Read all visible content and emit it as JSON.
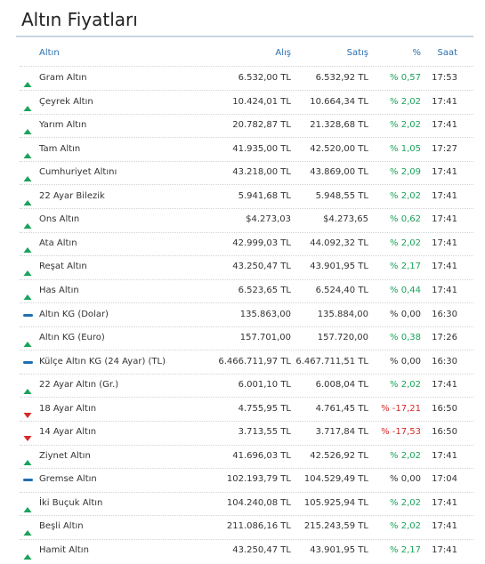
{
  "header": {
    "title": "Altın Fiyatları"
  },
  "table": {
    "columns": [
      "Altın",
      "Alış",
      "Satış",
      "%",
      "Saat"
    ],
    "rows": [
      [
        "Gram Altın",
        "6.532,00 TL",
        "6.532,92 TL",
        "% 0,57",
        "17:53"
      ],
      [
        "Çeyrek Altın",
        "10.424,01 TL",
        "10.664,34 TL",
        "% 2,02",
        "17:41"
      ],
      [
        "Yarım Altın",
        "20.782,87 TL",
        "21.328,68 TL",
        "% 2,02",
        "17:41"
      ],
      [
        "Tam Altın",
        "41.935,00 TL",
        "42.520,00 TL",
        "% 1,05",
        "17:27"
      ],
      [
        "Cumhuriyet Altını",
        "43.218,00 TL",
        "43.869,00 TL",
        "% 2,09",
        "17:41"
      ],
      [
        "22 Ayar Bilezik",
        "5.941,68 TL",
        "5.948,55 TL",
        "% 2,02",
        "17:41"
      ],
      [
        "Ons Altın",
        "$4.273,03",
        "$4.273,65",
        "% 0,62",
        "17:41"
      ],
      [
        "Ata Altın",
        "42.999,03 TL",
        "44.092,32 TL",
        "% 2,02",
        "17:41"
      ],
      [
        "Reşat Altın",
        "43.250,47 TL",
        "43.901,95 TL",
        "% 2,17",
        "17:41"
      ],
      [
        "Has Altın",
        "6.523,65 TL",
        "6.524,40 TL",
        "% 0,44",
        "17:41"
      ],
      [
        "Altın KG (Dolar)",
        "135.863,00",
        "135.884,00",
        "% 0,00",
        "16:30"
      ],
      [
        "Altın KG (Euro)",
        "157.701,00",
        "157.720,00",
        "% 0,38",
        "17:26"
      ],
      [
        "Külçe Altın KG (24 Ayar) (TL)",
        "6.466.711,97 TL",
        "6.467.711,51 TL",
        "% 0,00",
        "16:30"
      ],
      [
        "22 Ayar Altın (Gr.)",
        "6.001,10 TL",
        "6.008,04 TL",
        "% 2,02",
        "17:41"
      ],
      [
        "18 Ayar Altın",
        "4.755,95 TL",
        "4.761,45 TL",
        "% -17,21",
        "16:50"
      ],
      [
        "14 Ayar Altın",
        "3.713,55 TL",
        "3.717,84 TL",
        "% -17,53",
        "16:50"
      ],
      [
        "Ziynet Altın",
        "41.696,03 TL",
        "42.526,92 TL",
        "% 2,02",
        "17:41"
      ],
      [
        "Gremse Altın",
        "102.193,79 TL",
        "104.529,49 TL",
        "% 0,00",
        "17:04"
      ],
      [
        "İki Buçuk Altın",
        "104.240,08 TL",
        "105.925,94 TL",
        "% 2,02",
        "17:41"
      ],
      [
        "Beşli Altın",
        "211.086,16 TL",
        "215.243,59 TL",
        "% 2,02",
        "17:41"
      ],
      [
        "Hamit Altın",
        "43.250,47 TL",
        "43.901,95 TL",
        "% 2,17",
        "17:41"
      ]
    ],
    "trends": [
      "up",
      "up",
      "up",
      "up",
      "up",
      "up",
      "up",
      "up",
      "up",
      "up",
      "flat",
      "up",
      "flat",
      "up",
      "down",
      "down",
      "up",
      "flat",
      "up",
      "up",
      "up"
    ]
  }
}
